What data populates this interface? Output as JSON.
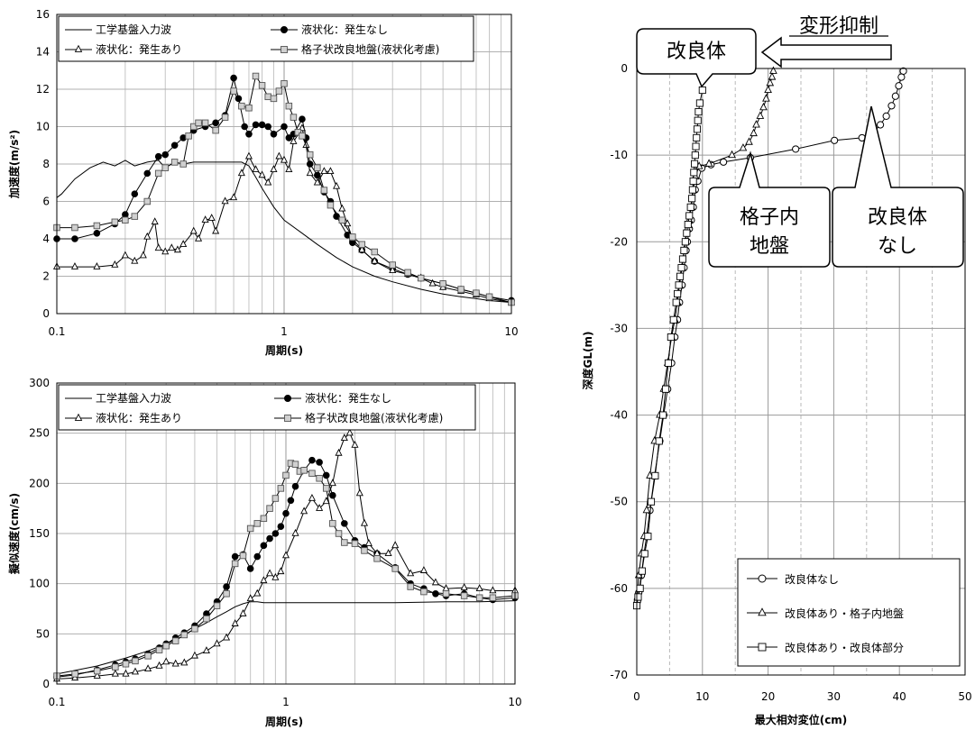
{
  "chart_data": [
    {
      "type": "line",
      "xscale": "log",
      "xlim": [
        0.1,
        10
      ],
      "ylim": [
        0,
        16
      ],
      "xlabel": "周期(s)",
      "ylabel": "加速度(m/s²)",
      "xticks": [
        "0.1",
        "1",
        "10"
      ],
      "yticks": [
        "0",
        "2",
        "4",
        "6",
        "8",
        "10",
        "12",
        "14",
        "16"
      ],
      "legend_position": "top",
      "series": [
        {
          "name": "工学基盤入力波",
          "marker": "none",
          "x": [
            0.1,
            0.105,
            0.12,
            0.14,
            0.16,
            0.18,
            0.2,
            0.22,
            0.25,
            0.28,
            0.3,
            0.33,
            0.36,
            0.4,
            0.45,
            0.5,
            0.55,
            0.6,
            0.65,
            0.7,
            0.75,
            0.8,
            0.9,
            1.0,
            1.2,
            1.4,
            1.7,
            2.0,
            2.5,
            3.0,
            4.0,
            5.0,
            6.0,
            7.0,
            8.0,
            10.0
          ],
          "y": [
            6.2,
            6.4,
            7.2,
            7.8,
            8.1,
            7.9,
            8.2,
            7.9,
            8.1,
            8.2,
            7.8,
            8.1,
            8.0,
            8.1,
            8.1,
            8.1,
            8.1,
            8.1,
            8.1,
            7.9,
            7.3,
            6.7,
            5.7,
            5.0,
            4.3,
            3.7,
            3.0,
            2.5,
            2.0,
            1.7,
            1.3,
            1.05,
            0.9,
            0.8,
            0.7,
            0.6
          ]
        },
        {
          "name": "液状化：発生なし",
          "marker": "circle",
          "x": [
            0.1,
            0.12,
            0.15,
            0.18,
            0.2,
            0.22,
            0.25,
            0.28,
            0.3,
            0.33,
            0.36,
            0.4,
            0.45,
            0.5,
            0.55,
            0.6,
            0.63,
            0.67,
            0.7,
            0.75,
            0.8,
            0.85,
            0.9,
            1.0,
            1.05,
            1.1,
            1.2,
            1.25,
            1.3,
            1.4,
            1.5,
            1.6,
            1.7,
            1.9,
            2.0,
            2.2,
            2.5,
            3.0,
            3.5,
            4.0,
            5.0,
            6.0,
            7.0,
            8.0,
            10.0
          ],
          "y": [
            4.0,
            4.0,
            4.3,
            4.8,
            5.3,
            6.4,
            7.5,
            8.4,
            8.5,
            9.0,
            9.4,
            9.8,
            10.0,
            10.2,
            10.6,
            12.6,
            11.5,
            10.0,
            9.6,
            10.1,
            10.1,
            10.0,
            9.6,
            10.0,
            9.4,
            9.6,
            10.4,
            9.4,
            8.0,
            7.4,
            6.5,
            6.0,
            5.2,
            4.2,
            3.8,
            3.4,
            2.8,
            2.4,
            2.1,
            1.9,
            1.6,
            1.3,
            1.1,
            0.9,
            0.7
          ]
        },
        {
          "name": "液状化：発生あり",
          "marker": "triangle",
          "x": [
            0.1,
            0.12,
            0.15,
            0.18,
            0.2,
            0.22,
            0.24,
            0.25,
            0.27,
            0.28,
            0.3,
            0.32,
            0.34,
            0.36,
            0.4,
            0.42,
            0.45,
            0.48,
            0.5,
            0.55,
            0.6,
            0.65,
            0.7,
            0.75,
            0.8,
            0.85,
            0.9,
            0.95,
            1.0,
            1.05,
            1.1,
            1.2,
            1.25,
            1.3,
            1.4,
            1.5,
            1.6,
            1.7,
            1.8,
            1.9,
            2.0,
            2.2,
            2.5,
            3.0,
            3.5,
            4.0,
            4.5,
            5.0,
            6.0,
            7.0,
            8.0,
            10.0
          ],
          "y": [
            2.5,
            2.5,
            2.5,
            2.6,
            3.1,
            2.8,
            3.1,
            4.1,
            4.9,
            3.5,
            3.3,
            3.5,
            3.4,
            3.7,
            4.4,
            4.0,
            5.0,
            5.1,
            4.4,
            6.0,
            6.2,
            7.5,
            8.4,
            7.7,
            7.4,
            7.0,
            7.7,
            8.4,
            8.2,
            7.7,
            9.2,
            9.9,
            9.0,
            7.5,
            7.0,
            7.6,
            7.6,
            6.8,
            5.6,
            4.8,
            4.0,
            3.4,
            2.8,
            2.3,
            2.1,
            1.9,
            1.6,
            1.4,
            1.2,
            1.0,
            0.8,
            0.6
          ]
        },
        {
          "name": "格子状改良地盤(液状化考慮)",
          "marker": "square",
          "x": [
            0.1,
            0.12,
            0.15,
            0.18,
            0.2,
            0.22,
            0.25,
            0.28,
            0.3,
            0.33,
            0.36,
            0.38,
            0.4,
            0.42,
            0.45,
            0.5,
            0.55,
            0.6,
            0.65,
            0.7,
            0.75,
            0.8,
            0.85,
            0.9,
            0.95,
            1.0,
            1.05,
            1.1,
            1.15,
            1.2,
            1.3,
            1.4,
            1.5,
            1.6,
            1.8,
            2.0,
            2.2,
            2.5,
            3.0,
            3.5,
            4.0,
            5.0,
            6.0,
            7.0,
            8.0,
            10.0
          ],
          "y": [
            4.6,
            4.6,
            4.7,
            4.9,
            5.0,
            5.2,
            6.0,
            7.5,
            7.8,
            8.1,
            8.0,
            9.5,
            10.0,
            10.2,
            10.2,
            9.8,
            10.5,
            11.9,
            11.1,
            11.0,
            12.7,
            12.2,
            11.6,
            11.5,
            11.9,
            12.3,
            11.1,
            10.5,
            9.7,
            9.5,
            8.5,
            7.8,
            6.6,
            5.8,
            5.0,
            4.1,
            3.7,
            3.3,
            2.6,
            2.2,
            1.9,
            1.6,
            1.3,
            1.1,
            0.9,
            0.6
          ]
        }
      ]
    },
    {
      "type": "line",
      "xscale": "log",
      "xlim": [
        0.1,
        10
      ],
      "ylim": [
        0,
        300
      ],
      "xlabel": "周期(s)",
      "ylabel": "擬似速度(cm/s)",
      "xticks": [
        "0.1",
        "1",
        "10"
      ],
      "yticks": [
        "0",
        "50",
        "100",
        "150",
        "200",
        "250",
        "300"
      ],
      "legend_position": "top",
      "series": [
        {
          "name": "工学基盤入力波",
          "marker": "none",
          "x": [
            0.1,
            0.15,
            0.2,
            0.25,
            0.3,
            0.35,
            0.4,
            0.45,
            0.5,
            0.55,
            0.6,
            0.65,
            0.7,
            0.75,
            0.8,
            0.9,
            1.0,
            2.0,
            3.0,
            5.0,
            7.0,
            10.0
          ],
          "y": [
            10,
            18,
            26,
            33,
            40,
            47,
            55,
            61,
            67,
            72,
            77,
            80,
            82,
            82,
            81,
            81,
            81,
            81,
            81,
            82,
            82,
            83
          ]
        },
        {
          "name": "液状化：発生なし",
          "marker": "circle",
          "x": [
            0.1,
            0.12,
            0.15,
            0.18,
            0.2,
            0.22,
            0.25,
            0.28,
            0.3,
            0.33,
            0.36,
            0.4,
            0.45,
            0.5,
            0.55,
            0.6,
            0.65,
            0.7,
            0.75,
            0.8,
            0.85,
            0.9,
            0.95,
            1.0,
            1.05,
            1.1,
            1.2,
            1.3,
            1.4,
            1.5,
            1.6,
            1.8,
            2.0,
            2.2,
            2.5,
            3.0,
            3.5,
            4.0,
            4.5,
            5.0,
            6.0,
            7.0,
            8.0,
            10.0
          ],
          "y": [
            7,
            9,
            14,
            19,
            22,
            25,
            30,
            36,
            40,
            46,
            51,
            58,
            70,
            82,
            97,
            127,
            129,
            115,
            127,
            138,
            145,
            150,
            157,
            170,
            183,
            197,
            213,
            223,
            221,
            208,
            188,
            160,
            143,
            136,
            130,
            116,
            100,
            95,
            90,
            88,
            90,
            86,
            84,
            86
          ]
        },
        {
          "name": "液状化：発生あり",
          "marker": "triangle",
          "x": [
            0.1,
            0.12,
            0.15,
            0.18,
            0.2,
            0.22,
            0.25,
            0.28,
            0.3,
            0.33,
            0.36,
            0.4,
            0.45,
            0.5,
            0.55,
            0.6,
            0.65,
            0.7,
            0.75,
            0.8,
            0.85,
            0.9,
            0.95,
            1.0,
            1.1,
            1.2,
            1.3,
            1.4,
            1.5,
            1.6,
            1.7,
            1.8,
            1.9,
            2.0,
            2.1,
            2.2,
            2.3,
            2.5,
            2.8,
            3.0,
            3.5,
            4.0,
            4.5,
            5.0,
            6.0,
            7.0,
            8.0,
            10.0
          ],
          "y": [
            5,
            6,
            8,
            10,
            10,
            12,
            15,
            18,
            22,
            20,
            21,
            28,
            33,
            40,
            46,
            60,
            70,
            85,
            90,
            103,
            110,
            106,
            112,
            128,
            150,
            172,
            185,
            175,
            182,
            200,
            230,
            245,
            250,
            238,
            190,
            160,
            140,
            130,
            130,
            138,
            110,
            113,
            101,
            95,
            96,
            95,
            93,
            93
          ]
        },
        {
          "name": "格子状改良地盤(液状化考慮)",
          "marker": "square",
          "x": [
            0.1,
            0.12,
            0.15,
            0.18,
            0.2,
            0.22,
            0.25,
            0.28,
            0.3,
            0.33,
            0.36,
            0.4,
            0.45,
            0.5,
            0.55,
            0.6,
            0.65,
            0.7,
            0.75,
            0.8,
            0.85,
            0.9,
            0.95,
            1.0,
            1.05,
            1.1,
            1.15,
            1.2,
            1.3,
            1.4,
            1.5,
            1.6,
            1.7,
            1.8,
            2.0,
            2.2,
            2.5,
            3.0,
            3.5,
            4.0,
            5.0,
            6.0,
            7.0,
            8.0,
            10.0
          ],
          "y": [
            8,
            10,
            13,
            17,
            20,
            23,
            28,
            34,
            38,
            43,
            49,
            55,
            65,
            78,
            90,
            120,
            128,
            155,
            160,
            165,
            175,
            185,
            195,
            208,
            220,
            219,
            212,
            213,
            210,
            205,
            195,
            160,
            150,
            141,
            140,
            133,
            125,
            115,
            97,
            92,
            90,
            88,
            86,
            86,
            88
          ]
        }
      ]
    },
    {
      "type": "line",
      "xlim": [
        0,
        50
      ],
      "ylim": [
        -70,
        0
      ],
      "xlabel": "最大相対変位(cm)",
      "ylabel": "深度GL(m)",
      "xticks": [
        "0",
        "10",
        "20",
        "30",
        "40",
        "50"
      ],
      "yticks": [
        "0",
        "-10",
        "-20",
        "-30",
        "-40",
        "-50",
        "-60",
        "-70"
      ],
      "grid_minor_x_dashed": [
        5,
        15,
        25,
        35,
        45
      ],
      "legend_position": "bottom-right",
      "series": [
        {
          "name": "改良体なし",
          "marker": "circle",
          "x": [
            40.6,
            40.3,
            39.9,
            39.4,
            38.8,
            38.0,
            37.1,
            35.9,
            34.3,
            30.1,
            24.2,
            17.3,
            13.2,
            11.3,
            9.9,
            9.3,
            8.9,
            8.6,
            8.3,
            8.0,
            7.7,
            7.5,
            7.2,
            6.9,
            6.5,
            6.2,
            5.8,
            5.3,
            4.7,
            4.1,
            3.5,
            2.7,
            2.0,
            1.5,
            1.1,
            0.7,
            0.3,
            0.1
          ],
          "y": [
            -0.3,
            -1.0,
            -2.0,
            -3.2,
            -4.3,
            -5.5,
            -6.5,
            -7.5,
            -8.0,
            -8.3,
            -9.3,
            -10.3,
            -10.8,
            -11.1,
            -11.5,
            -13.0,
            -14.0,
            -16.0,
            -17.5,
            -18.5,
            -20.0,
            -21.0,
            -23.0,
            -25.0,
            -27.0,
            -29.0,
            -31.0,
            -34.0,
            -37.0,
            -40.0,
            -43.0,
            -47.0,
            -51.0,
            -54.0,
            -56.0,
            -58.5,
            -60.5,
            -61.5
          ]
        },
        {
          "name": "改良体あり・格子内地盤",
          "marker": "triangle",
          "x": [
            20.8,
            20.6,
            20.3,
            20.0,
            19.7,
            19.3,
            18.8,
            18.2,
            17.8,
            17.1,
            16.2,
            14.5,
            11.0,
            9.5,
            8.9,
            8.6,
            8.3,
            8.0,
            7.7,
            7.4,
            7.2,
            6.9,
            6.5,
            6.2,
            5.8,
            5.3,
            4.7,
            4.1,
            3.5,
            2.7,
            2.0,
            1.5,
            1.1,
            0.7,
            0.3,
            0.1
          ],
          "y": [
            -0.3,
            -1.0,
            -1.7,
            -2.5,
            -3.5,
            -4.5,
            -5.5,
            -6.5,
            -7.5,
            -8.5,
            -9.2,
            -10.0,
            -11.0,
            -11.3,
            -12.5,
            -14.0,
            -16.0,
            -17.5,
            -18.5,
            -20.0,
            -21.0,
            -23.0,
            -25.0,
            -27.0,
            -29.0,
            -31.0,
            -34.0,
            -37.0,
            -40.0,
            -43.0,
            -47.0,
            -51.0,
            -54.0,
            -56.0,
            -58.5,
            -61.0
          ]
        },
        {
          "name": "改良体あり・改良体部分",
          "marker": "square",
          "x": [
            10.0,
            9.6,
            9.4,
            9.3,
            9.2,
            9.1,
            9.0,
            8.9,
            8.8,
            8.7,
            8.6,
            8.5,
            8.4,
            8.2,
            8.0,
            7.8,
            7.6,
            7.4,
            7.2,
            7.0,
            6.8,
            6.6,
            6.4,
            6.2,
            6.0,
            5.6,
            5.2,
            4.8,
            4.4,
            4.0,
            3.4,
            2.8,
            2.2,
            1.7,
            1.2,
            0.8,
            0.5,
            0.2,
            0.0
          ],
          "y": [
            -2.5,
            -4.0,
            -5.0,
            -6.0,
            -7.0,
            -8.0,
            -9.0,
            -10.0,
            -11.0,
            -12.0,
            -13.0,
            -14.0,
            -15.0,
            -16.0,
            -17.0,
            -18.0,
            -19.0,
            -20.0,
            -21.0,
            -22.0,
            -23.0,
            -24.0,
            -25.0,
            -26.0,
            -27.0,
            -29.0,
            -31.0,
            -34.0,
            -37.0,
            -40.0,
            -43.0,
            -47.0,
            -50.0,
            -54.0,
            -56.0,
            -58.0,
            -60.0,
            -61.0,
            -62.0
          ]
        }
      ]
    }
  ],
  "annotations": {
    "deform_suppress": "変形抑制",
    "kairyotai": "改良体",
    "koshinai_line1": "格子内",
    "koshinai_line2": "地盤",
    "nashi_line1": "改良体",
    "nashi_line2": "なし"
  }
}
